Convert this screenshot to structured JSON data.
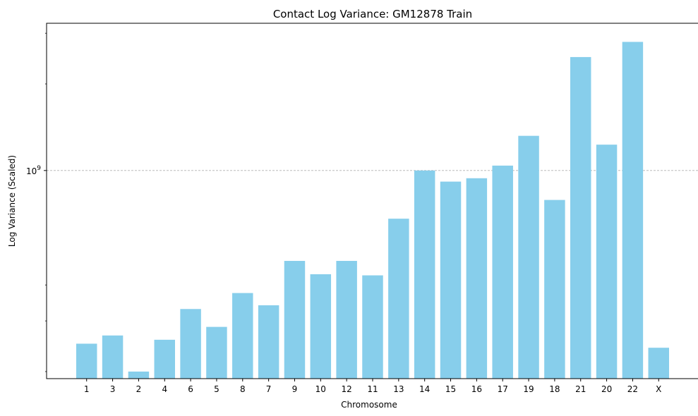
{
  "chart_data": {
    "type": "bar",
    "title": "Contact Log Variance: GM12878 Train",
    "xlabel": "Chromosome",
    "ylabel": "Log Variance (Scaled)",
    "yscale": "log",
    "ylim": [
      189000000,
      3250000000
    ],
    "y_major_tick": {
      "value": 1000000000,
      "label_base": "10",
      "label_exp": "9"
    },
    "y_minor_ticks": [
      200000000,
      300000000,
      400000000,
      2000000000,
      3000000000
    ],
    "grid": "major-y-dashed",
    "bar_color": "#87ceeb",
    "categories": [
      "1",
      "3",
      "2",
      "4",
      "6",
      "5",
      "8",
      "7",
      "9",
      "10",
      "12",
      "11",
      "13",
      "14",
      "15",
      "16",
      "17",
      "19",
      "18",
      "21",
      "20",
      "22",
      "X"
    ],
    "values": [
      250000000,
      267000000,
      200000000,
      258000000,
      330000000,
      286000000,
      375000000,
      340000000,
      485000000,
      436000000,
      485000000,
      432000000,
      680000000,
      1000000000,
      915000000,
      940000000,
      1040000000,
      1320000000,
      790000000,
      2480000000,
      1230000000,
      2800000000,
      242000000
    ]
  }
}
